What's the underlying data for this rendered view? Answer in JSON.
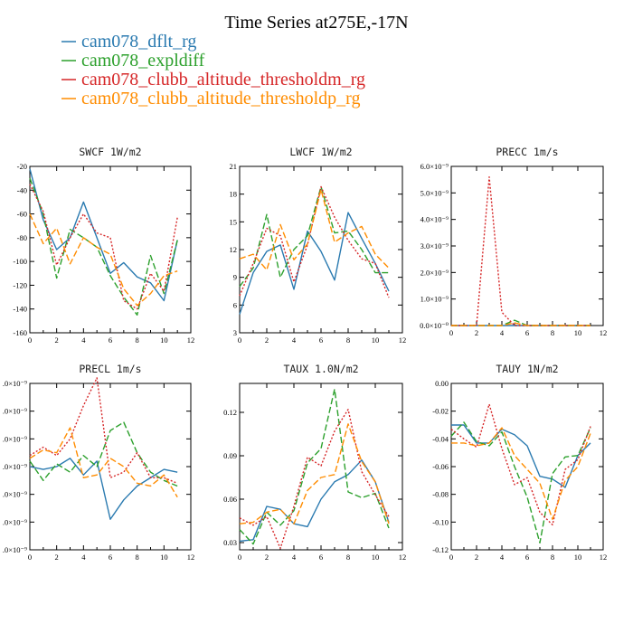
{
  "figure_title": "Time Series at275E,-17N",
  "legend": [
    {
      "name": "cam078_dflt_rg",
      "color": "#2a7ab0",
      "dash": ""
    },
    {
      "name": "cam078_expldiff",
      "color": "#2ca02c",
      "dash": "7,3"
    },
    {
      "name": "cam078_clubb_altitude_thresholdm_rg",
      "color": "#d62728",
      "dash": "2,2"
    },
    {
      "name": "cam078_clubb_altitude_thresholdp_rg",
      "color": "#ff8c00",
      "dash": "7,3"
    }
  ],
  "chart_data": [
    {
      "type": "line",
      "title": "SWCF   1W/m2",
      "x": [
        0,
        1,
        2,
        3,
        4,
        5,
        6,
        7,
        8,
        9,
        10,
        11
      ],
      "xlim": [
        0,
        12
      ],
      "xticks": [
        "0",
        "2",
        "4",
        "6",
        "8",
        "10",
        "12"
      ],
      "xtick_values": [
        0,
        2,
        4,
        6,
        8,
        10,
        12
      ],
      "ylim": [
        -160,
        -20
      ],
      "yticks": [
        "-160",
        "-140",
        "-120",
        "-100",
        "-80",
        "-60",
        "-40",
        "-20"
      ],
      "ytick_values": [
        -160,
        -140,
        -120,
        -100,
        -80,
        -60,
        -40,
        -20
      ],
      "series": [
        {
          "name": "cam078_dflt_rg",
          "values": [
            -22,
            -65,
            -90,
            -80,
            -50,
            -80,
            -110,
            -101,
            -113,
            -118,
            -133,
            -82
          ]
        },
        {
          "name": "cam078_expldiff",
          "values": [
            -30,
            -60,
            -114,
            -73,
            -80,
            -88,
            -112,
            -130,
            -145,
            -95,
            -127,
            -82
          ]
        },
        {
          "name": "cam078_clubb_altitude_thresholdm_rg",
          "values": [
            -35,
            -58,
            -103,
            -80,
            -60,
            -76,
            -80,
            -133,
            -140,
            -110,
            -125,
            -63
          ]
        },
        {
          "name": "cam078_clubb_altitude_thresholdp_rg",
          "values": [
            -60,
            -85,
            -72,
            -102,
            -80,
            -88,
            -94,
            -123,
            -137,
            -127,
            -112,
            -108
          ]
        }
      ]
    },
    {
      "type": "line",
      "title": "LWCF   1W/m2",
      "x": [
        0,
        1,
        2,
        3,
        4,
        5,
        6,
        7,
        8,
        9,
        10,
        11
      ],
      "xlim": [
        0,
        12
      ],
      "xticks": [
        "0",
        "2",
        "4",
        "6",
        "8",
        "10",
        "12"
      ],
      "xtick_values": [
        0,
        2,
        4,
        6,
        8,
        10,
        12
      ],
      "ylim": [
        3,
        21
      ],
      "yticks": [
        "3",
        "6",
        "9",
        "12",
        "15",
        "18",
        "21"
      ],
      "ytick_values": [
        3,
        6,
        9,
        12,
        15,
        18,
        21
      ],
      "series": [
        {
          "name": "cam078_dflt_rg",
          "values": [
            5,
            9.5,
            11.8,
            12.5,
            7.7,
            14,
            11.8,
            8.7,
            16,
            13.2,
            10.5,
            7.5
          ]
        },
        {
          "name": "cam078_expldiff",
          "values": [
            8,
            10,
            15.8,
            9,
            12,
            13.5,
            18.8,
            13.8,
            14,
            12,
            9.5,
            9.5
          ]
        },
        {
          "name": "cam078_clubb_altitude_thresholdm_rg",
          "values": [
            7,
            10.5,
            14.3,
            13.5,
            8.5,
            12.5,
            18.8,
            15.5,
            13,
            11,
            10.5,
            6.8
          ]
        },
        {
          "name": "cam078_clubb_altitude_thresholdp_rg",
          "values": [
            11,
            11.5,
            9.8,
            14.7,
            10.9,
            12.6,
            18.5,
            12.8,
            13.8,
            14.5,
            11.5,
            10
          ]
        }
      ]
    },
    {
      "type": "line",
      "title": "PRECC   1m/s",
      "x": [
        0,
        1,
        2,
        3,
        4,
        5,
        6,
        7,
        8,
        9,
        10,
        11
      ],
      "xlim": [
        0,
        12
      ],
      "xticks": [
        "0",
        "2",
        "4",
        "6",
        "8",
        "10",
        "12"
      ],
      "xtick_values": [
        0,
        2,
        4,
        6,
        8,
        10,
        12
      ],
      "ylim": [
        0,
        6e-09
      ],
      "yticks": [
        "0.0×10⁻⁰",
        "1.0×10⁻⁹",
        "2.0×10⁻⁹",
        "3.0×10⁻⁹",
        "4.0×10⁻⁹",
        "5.0×10⁻⁹",
        "6.0×10⁻⁹"
      ],
      "ytick_values": [
        0,
        1e-09,
        2e-09,
        3e-09,
        4e-09,
        5e-09,
        6e-09
      ],
      "series": [
        {
          "name": "cam078_dflt_rg",
          "values": [
            0,
            0,
            0,
            0,
            0,
            0,
            0,
            0,
            0,
            0,
            0,
            0
          ]
        },
        {
          "name": "cam078_expldiff",
          "values": [
            0,
            0,
            0,
            0,
            0,
            2e-10,
            0,
            0,
            0,
            0,
            0,
            0
          ]
        },
        {
          "name": "cam078_clubb_altitude_thresholdm_rg",
          "values": [
            0,
            0,
            0,
            5.6e-09,
            5e-10,
            0,
            0,
            0,
            0,
            0,
            0,
            0
          ]
        },
        {
          "name": "cam078_clubb_altitude_thresholdp_rg",
          "values": [
            0,
            0,
            0,
            0,
            0,
            1e-10,
            0,
            0,
            0,
            0,
            0,
            0
          ]
        }
      ]
    },
    {
      "type": "line",
      "title": "PRECL   1m/s",
      "x": [
        0,
        1,
        2,
        3,
        4,
        5,
        6,
        7,
        8,
        9,
        10,
        11
      ],
      "xlim": [
        0,
        12
      ],
      "xticks": [
        "0",
        "2",
        "4",
        "6",
        "8",
        "10",
        "12"
      ],
      "xtick_values": [
        0,
        2,
        4,
        6,
        8,
        10,
        12
      ],
      "ylim": [
        0,
        6e-09
      ],
      "yticks": [
        ".0×10⁻⁹",
        ".0×10⁻⁹",
        ".0×10⁻⁹",
        ".0×10⁻⁹",
        ".0×10⁻⁹",
        ".0×10⁻⁹",
        ".0×10⁻⁹"
      ],
      "ytick_values": [
        0,
        1e-09,
        2e-09,
        3e-09,
        4e-09,
        5e-09,
        6e-09
      ],
      "series": [
        {
          "name": "cam078_dflt_rg",
          "values": [
            3e-09,
            2.9e-09,
            3e-09,
            3.3e-09,
            2.7e-09,
            3.2e-09,
            1.1e-09,
            1.8e-09,
            2.3e-09,
            2.6e-09,
            2.9e-09,
            2.8e-09
          ]
        },
        {
          "name": "cam078_expldiff",
          "values": [
            3.2e-09,
            2.5e-09,
            3.1e-09,
            2.8e-09,
            3.4e-09,
            3e-09,
            4.3e-09,
            4.6e-09,
            3.5e-09,
            2.8e-09,
            2.5e-09,
            2.3e-09
          ]
        },
        {
          "name": "cam078_clubb_altitude_thresholdm_rg",
          "values": [
            3.4e-09,
            3.7e-09,
            3.4e-09,
            4e-09,
            5.2e-09,
            6.2e-09,
            2.6e-09,
            2.8e-09,
            3.5e-09,
            2.6e-09,
            2.6e-09,
            2.4e-09
          ]
        },
        {
          "name": "cam078_clubb_altitude_thresholdp_rg",
          "values": [
            3.3e-09,
            3.6e-09,
            3.5e-09,
            4.4e-09,
            2.6e-09,
            2.7e-09,
            3.3e-09,
            3e-09,
            2.4e-09,
            2.3e-09,
            2.7e-09,
            1.9e-09
          ]
        }
      ]
    },
    {
      "type": "line",
      "title": "TAUX   1.0N/m2",
      "x": [
        0,
        1,
        2,
        3,
        4,
        5,
        6,
        7,
        8,
        9,
        10,
        11
      ],
      "xlim": [
        0,
        12
      ],
      "xticks": [
        "0",
        "2",
        "4",
        "6",
        "8",
        "10",
        "12"
      ],
      "xtick_values": [
        0,
        2,
        4,
        6,
        8,
        10,
        12
      ],
      "ylim": [
        0.025,
        0.14
      ],
      "yticks": [
        "0.03",
        "0.06",
        "0.09",
        "0.12"
      ],
      "ytick_values": [
        0.03,
        0.06,
        0.09,
        0.12
      ],
      "series": [
        {
          "name": "cam078_dflt_rg",
          "values": [
            0.031,
            0.032,
            0.055,
            0.053,
            0.043,
            0.041,
            0.06,
            0.072,
            0.077,
            0.087,
            0.072,
            0.044
          ]
        },
        {
          "name": "cam078_expldiff",
          "values": [
            0.039,
            0.029,
            0.051,
            0.042,
            0.052,
            0.085,
            0.095,
            0.136,
            0.065,
            0.061,
            0.064,
            0.04
          ]
        },
        {
          "name": "cam078_clubb_altitude_thresholdm_rg",
          "values": [
            0.047,
            0.042,
            0.048,
            0.026,
            0.055,
            0.089,
            0.083,
            0.107,
            0.122,
            0.079,
            0.063,
            0.048
          ]
        },
        {
          "name": "cam078_clubb_altitude_thresholdp_rg",
          "values": [
            0.043,
            0.044,
            0.051,
            0.053,
            0.043,
            0.066,
            0.075,
            0.077,
            0.112,
            0.086,
            0.072,
            0.043
          ]
        }
      ]
    },
    {
      "type": "line",
      "title": "TAUY   1N/m2",
      "x": [
        0,
        1,
        2,
        3,
        4,
        5,
        6,
        7,
        8,
        9,
        10,
        11
      ],
      "xlim": [
        0,
        12
      ],
      "xticks": [
        "0",
        "2",
        "4",
        "6",
        "8",
        "10",
        "12"
      ],
      "xtick_values": [
        0,
        2,
        4,
        6,
        8,
        10,
        12
      ],
      "ylim": [
        -0.12,
        0.0
      ],
      "yticks": [
        "-0.12",
        "-0.10",
        "-0.08",
        "-0.06",
        "-0.04",
        "-0.02",
        "0.00"
      ],
      "ytick_values": [
        -0.12,
        -0.1,
        -0.08,
        -0.06,
        -0.04,
        -0.02,
        0.0
      ],
      "series": [
        {
          "name": "cam078_dflt_rg",
          "values": [
            -0.03,
            -0.03,
            -0.043,
            -0.043,
            -0.033,
            -0.037,
            -0.045,
            -0.067,
            -0.069,
            -0.075,
            -0.052,
            -0.043
          ]
        },
        {
          "name": "cam078_expldiff",
          "values": [
            -0.038,
            -0.028,
            -0.042,
            -0.045,
            -0.035,
            -0.06,
            -0.082,
            -0.115,
            -0.065,
            -0.053,
            -0.052,
            -0.032
          ]
        },
        {
          "name": "cam078_clubb_altitude_thresholdm_rg",
          "values": [
            -0.033,
            -0.04,
            -0.046,
            -0.015,
            -0.047,
            -0.073,
            -0.068,
            -0.093,
            -0.102,
            -0.062,
            -0.055,
            -0.031
          ]
        },
        {
          "name": "cam078_clubb_altitude_thresholdp_rg",
          "values": [
            -0.043,
            -0.043,
            -0.045,
            -0.043,
            -0.032,
            -0.052,
            -0.062,
            -0.072,
            -0.098,
            -0.07,
            -0.06,
            -0.036
          ]
        }
      ]
    }
  ]
}
